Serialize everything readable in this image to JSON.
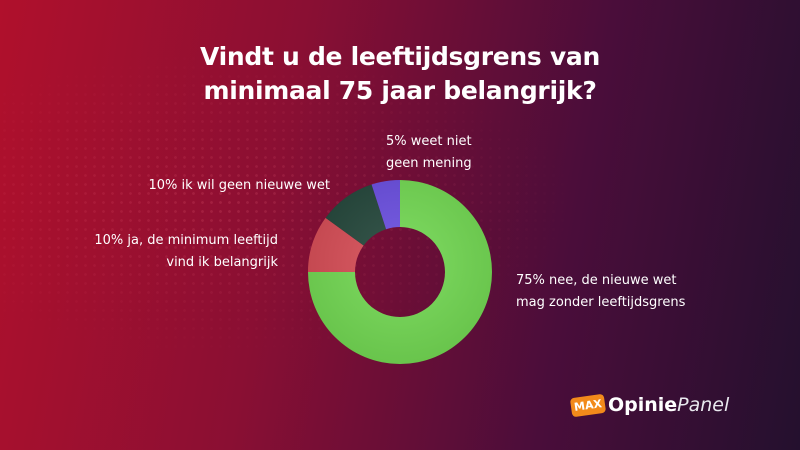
{
  "title_lines": [
    "Vindt u de leeftijdsgrens van",
    "minimaal 75 jaar belangrijk?"
  ],
  "brand": {
    "badge": "MAX",
    "name_bold": "Opinie",
    "name_italic": "Panel"
  },
  "colors": {
    "background_left": "#b0102c",
    "background_right": "#24102e"
  },
  "chart_data": {
    "type": "pie",
    "variant": "donut",
    "title": "Vindt u de leeftijdsgrens van minimaal 75 jaar belangrijk?",
    "slices": [
      {
        "value": 75,
        "label_lines": [
          "75% nee, de nieuwe wet",
          "mag zonder leeftijdsgrens"
        ],
        "color": "#72d852"
      },
      {
        "value": 10,
        "label_lines": [
          "10% ja, de minimum leeftijd",
          "vind ik belangrijk"
        ],
        "color": "#d64c55"
      },
      {
        "value": 10,
        "label_lines": [
          "10% ik wil geen nieuwe wet"
        ],
        "color": "#23463a"
      },
      {
        "value": 5,
        "label_lines": [
          "5% weet niet",
          "geen mening"
        ],
        "color": "#6a4ee0"
      }
    ],
    "start": "12 o'clock",
    "direction": "clockwise"
  }
}
